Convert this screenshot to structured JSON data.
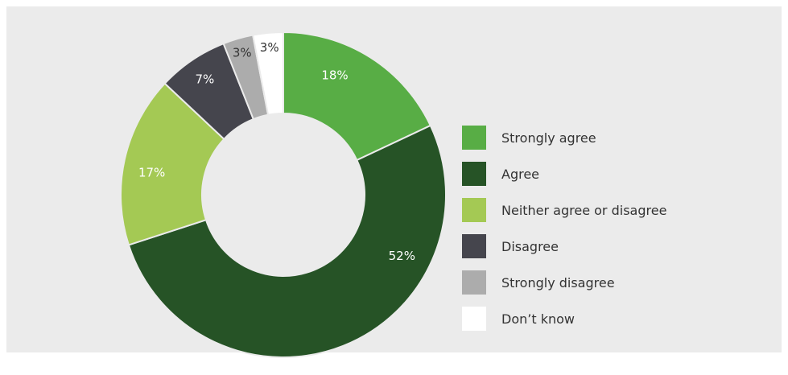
{
  "chart_data": {
    "type": "pie",
    "variant": "donut",
    "categories": [
      "Strongly agree",
      "Agree",
      "Neither agree or disagree",
      "Disagree",
      "Strongly disagree",
      "Don’t know"
    ],
    "values": [
      18,
      52,
      17,
      7,
      3,
      3
    ],
    "value_labels": [
      "18%",
      "52%",
      "17%",
      "7%",
      "3%",
      "3%"
    ],
    "colors": [
      "#58ad45",
      "#265326",
      "#a4c954",
      "#45454d",
      "#acacac",
      "#ffffff"
    ],
    "label_colors": [
      "#ffffff",
      "#ffffff",
      "#ffffff",
      "#ffffff",
      "#333333",
      "#333333"
    ],
    "title": "",
    "legend_position": "right"
  }
}
